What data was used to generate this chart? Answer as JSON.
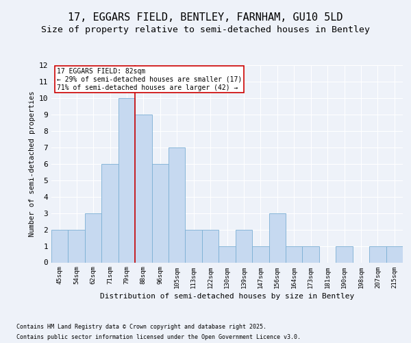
{
  "title1": "17, EGGARS FIELD, BENTLEY, FARNHAM, GU10 5LD",
  "title2": "Size of property relative to semi-detached houses in Bentley",
  "xlabel": "Distribution of semi-detached houses by size in Bentley",
  "ylabel": "Number of semi-detached properties",
  "categories": [
    "45sqm",
    "54sqm",
    "62sqm",
    "71sqm",
    "79sqm",
    "88sqm",
    "96sqm",
    "105sqm",
    "113sqm",
    "122sqm",
    "130sqm",
    "139sqm",
    "147sqm",
    "156sqm",
    "164sqm",
    "173sqm",
    "181sqm",
    "190sqm",
    "198sqm",
    "207sqm",
    "215sqm"
  ],
  "values": [
    2,
    2,
    3,
    6,
    10,
    9,
    6,
    7,
    2,
    2,
    1,
    2,
    1,
    3,
    1,
    1,
    0,
    1,
    0,
    1,
    1
  ],
  "bar_color": "#c6d9f0",
  "bar_edgecolor": "#7bafd4",
  "ylim": [
    0,
    12
  ],
  "yticks": [
    0,
    1,
    2,
    3,
    4,
    5,
    6,
    7,
    8,
    9,
    10,
    11,
    12
  ],
  "property_line_x": 4.5,
  "property_line_color": "#cc0000",
  "annotation_title": "17 EGGARS FIELD: 82sqm",
  "annotation_line1": "← 29% of semi-detached houses are smaller (17)",
  "annotation_line2": "71% of semi-detached houses are larger (42) →",
  "annotation_box_color": "#cc0000",
  "footer1": "Contains HM Land Registry data © Crown copyright and database right 2025.",
  "footer2": "Contains public sector information licensed under the Open Government Licence v3.0.",
  "background_color": "#eef2f9",
  "grid_color": "#ffffff",
  "title1_fontsize": 11,
  "title2_fontsize": 9.5,
  "ylabel_fontsize": 7.5,
  "xlabel_fontsize": 8,
  "xtick_fontsize": 6.5,
  "ytick_fontsize": 8,
  "annotation_fontsize": 7,
  "footer_fontsize": 6
}
